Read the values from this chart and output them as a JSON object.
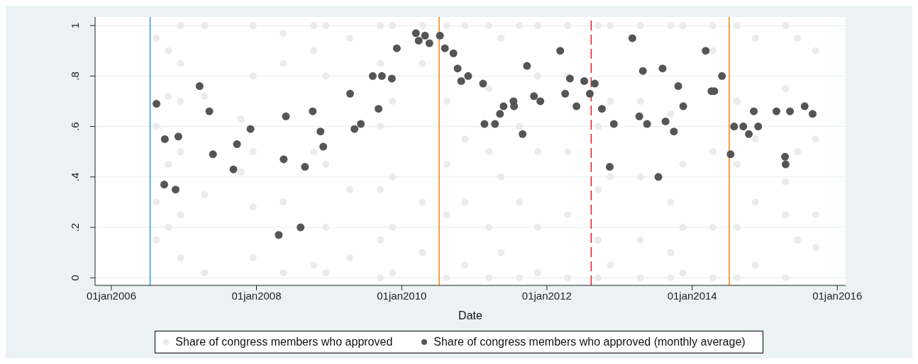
{
  "chart_data": {
    "type": "scatter",
    "xlabel": "Date",
    "marker": "circle",
    "grid": "y",
    "legend": "bottom",
    "xlim": [
      "2005-10-11",
      "2016-02-12"
    ],
    "ylim": [
      -0.03,
      1.034
    ],
    "xticks": [
      {
        "value": "2006-01-01",
        "label": "01jan2006"
      },
      {
        "value": "2008-01-01",
        "label": "01jan2008"
      },
      {
        "value": "2010-01-01",
        "label": "01jan2010"
      },
      {
        "value": "2012-01-01",
        "label": "01jan2012"
      },
      {
        "value": "2014-01-01",
        "label": "01jan2014"
      },
      {
        "value": "2016-01-01",
        "label": "01jan2016"
      }
    ],
    "yticks": [
      0,
      {
        "value": 0.2,
        "label": ".2"
      },
      {
        "value": 0.4,
        "label": ".4"
      },
      {
        "value": 0.6,
        "label": ".6"
      },
      {
        "value": 0.8,
        "label": ".8"
      },
      1
    ],
    "ref_lines": [
      {
        "axis": "x",
        "value": "2006-07-15",
        "color": "#3d9be9",
        "line_style": "solid"
      },
      {
        "axis": "x",
        "value": "2010-07-08",
        "color": "#f08a24",
        "line_style": "solid"
      },
      {
        "axis": "x",
        "value": "2012-08-11",
        "color": "#e8242c",
        "line_style": "dashed"
      },
      {
        "axis": "x",
        "value": "2014-07-06",
        "color": "#f08a24",
        "line_style": "solid"
      }
    ],
    "series": [
      {
        "name": "Share of congress members who approved",
        "color": "#ebebeb",
        "x": [
          "2006-08-15",
          "2006-08-15",
          "2006-08-15",
          "2006-08-15",
          "2006-10-15",
          "2006-10-15",
          "2006-10-15",
          "2006-10-15",
          "2006-12-15",
          "2006-12-15",
          "2006-12-15",
          "2006-12-15",
          "2006-12-15",
          "2006-12-15",
          "2007-04-15",
          "2007-04-15",
          "2007-04-15",
          "2007-04-15",
          "2007-10-15",
          "2007-10-15",
          "2007-12-15",
          "2007-12-15",
          "2007-12-15",
          "2007-12-15",
          "2007-12-15",
          "2008-05-15",
          "2008-05-15",
          "2008-05-15",
          "2008-05-15",
          "2008-10-15",
          "2008-10-15",
          "2008-10-15",
          "2008-10-15",
          "2008-12-15",
          "2008-12-15",
          "2008-12-15",
          "2008-12-15",
          "2008-12-15",
          "2009-04-15",
          "2009-04-15",
          "2009-04-15",
          "2009-09-15",
          "2009-09-15",
          "2009-09-15",
          "2009-09-15",
          "2009-09-15",
          "2009-09-15",
          "2009-11-15",
          "2009-11-15",
          "2009-11-15",
          "2009-11-15",
          "2009-11-15",
          "2010-04-15",
          "2010-04-15",
          "2010-04-15",
          "2010-04-15",
          "2010-08-15",
          "2010-08-15",
          "2010-08-15",
          "2010-08-15",
          "2010-08-15",
          "2010-11-15",
          "2010-11-15",
          "2010-11-15",
          "2010-11-15",
          "2011-03-15",
          "2011-03-15",
          "2011-03-15",
          "2011-03-15",
          "2011-03-15",
          "2011-05-15",
          "2011-05-15",
          "2011-05-15",
          "2011-08-15",
          "2011-08-15",
          "2011-08-15",
          "2011-08-15",
          "2011-11-15",
          "2011-11-15",
          "2011-11-15",
          "2011-11-15",
          "2011-11-15",
          "2012-04-15",
          "2012-04-15",
          "2012-04-15",
          "2012-04-15",
          "2012-04-15",
          "2012-09-15",
          "2012-09-15",
          "2012-09-15",
          "2012-09-15",
          "2012-09-15",
          "2012-11-15",
          "2012-11-15",
          "2012-11-15",
          "2012-11-15",
          "2013-04-15",
          "2013-04-15",
          "2013-04-15",
          "2013-04-15",
          "2013-04-15",
          "2013-09-15",
          "2013-09-15",
          "2013-09-15",
          "2013-09-15",
          "2013-09-15",
          "2013-11-15",
          "2013-11-15",
          "2013-11-15",
          "2013-11-15",
          "2014-04-15",
          "2014-04-15",
          "2014-04-15",
          "2014-04-15",
          "2014-04-15",
          "2014-08-15",
          "2014-08-15",
          "2014-08-15",
          "2014-08-15",
          "2014-08-15",
          "2014-11-15",
          "2014-11-15",
          "2014-11-15",
          "2014-11-15",
          "2015-04-15",
          "2015-04-15",
          "2015-04-15",
          "2015-04-15",
          "2015-04-15",
          "2015-06-15",
          "2015-06-15",
          "2015-06-15",
          "2015-09-15",
          "2015-09-15",
          "2015-09-15",
          "2015-09-15"
        ],
        "values": [
          0.95,
          0.6,
          0.3,
          0.15,
          0.9,
          0.72,
          0.45,
          0.2,
          1,
          0.85,
          0.7,
          0.5,
          0.25,
          0.08,
          1,
          0.72,
          0.33,
          0.02,
          0.63,
          0.42,
          1,
          0.8,
          0.5,
          0.28,
          0.08,
          0.97,
          0.85,
          0.3,
          0.02,
          1,
          0.9,
          0.5,
          0.05,
          1,
          0.8,
          0.45,
          0.2,
          0.02,
          0.95,
          0.35,
          0.08,
          1,
          0.85,
          0.6,
          0.35,
          0.15,
          0,
          1,
          0.7,
          0.4,
          0.2,
          0.02,
          1,
          0.85,
          0.3,
          0.1,
          1,
          0.7,
          0.45,
          0.25,
          0,
          1,
          0.55,
          0.3,
          0.05,
          1,
          0.75,
          0.5,
          0.2,
          0,
          0.95,
          0.4,
          0.1,
          1,
          0.6,
          0.3,
          0,
          1,
          0.8,
          0.5,
          0.2,
          0.02,
          1,
          0.8,
          0.5,
          0.25,
          0,
          1,
          0.6,
          0.35,
          0.15,
          0,
          1,
          0.7,
          0.4,
          0.05,
          1,
          0.7,
          0.4,
          0.15,
          0,
          1,
          0.65,
          0.3,
          0.1,
          0,
          1,
          0.45,
          0.2,
          0.02,
          1,
          0.9,
          0.5,
          0.2,
          0,
          1,
          0.7,
          0.45,
          0.2,
          0,
          0.95,
          0.55,
          0.3,
          0.05,
          1,
          0.75,
          0.38,
          0.25,
          0,
          0.95,
          0.5,
          0.15,
          0.9,
          0.55,
          0.25,
          0.12
        ]
      },
      {
        "name": "Share of congress members who approved (monthly average)",
        "color": "#555555",
        "x": [
          "2006-08-16",
          "2006-09-24",
          "2006-09-27",
          "2006-11-20",
          "2006-12-04",
          "2007-03-21",
          "2007-05-09",
          "2007-05-27",
          "2007-09-07",
          "2007-09-25",
          "2007-12-02",
          "2008-04-22",
          "2008-05-17",
          "2008-05-28",
          "2008-08-10",
          "2008-09-01",
          "2008-10-10",
          "2008-11-18",
          "2008-12-02",
          "2009-04-16",
          "2009-05-08",
          "2009-06-09",
          "2009-08-08",
          "2009-09-06",
          "2009-09-23",
          "2009-11-12",
          "2009-12-07",
          "2010-03-13",
          "2010-03-27",
          "2010-04-28",
          "2010-05-20",
          "2010-07-12",
          "2010-08-06",
          "2010-09-18",
          "2010-10-09",
          "2010-10-27",
          "2010-12-01",
          "2011-02-14",
          "2011-02-21",
          "2011-04-15",
          "2011-05-10",
          "2011-05-28",
          "2011-07-17",
          "2011-07-20",
          "2011-09-01",
          "2011-09-23",
          "2011-10-28",
          "2011-11-29",
          "2012-03-08",
          "2012-04-02",
          "2012-04-26",
          "2012-05-29",
          "2012-07-07",
          "2012-08-04",
          "2012-08-29",
          "2012-10-04",
          "2012-11-12",
          "2012-12-03",
          "2013-03-06",
          "2013-04-10",
          "2013-04-28",
          "2013-05-19",
          "2013-07-15",
          "2013-08-05",
          "2013-08-20",
          "2013-10-01",
          "2013-10-23",
          "2013-11-17",
          "2014-03-10",
          "2014-04-08",
          "2014-04-22",
          "2014-05-31",
          "2014-07-13",
          "2014-07-31",
          "2014-09-15",
          "2014-10-13",
          "2014-11-07",
          "2014-11-29",
          "2015-03-01",
          "2015-04-13",
          "2015-04-16",
          "2015-05-08",
          "2015-07-21",
          "2015-08-30"
        ],
        "values": [
          0.69,
          0.37,
          0.55,
          0.35,
          0.56,
          0.76,
          0.66,
          0.49,
          0.43,
          0.53,
          0.59,
          0.17,
          0.47,
          0.64,
          0.2,
          0.44,
          0.66,
          0.58,
          0.52,
          0.73,
          0.59,
          0.61,
          0.8,
          0.67,
          0.8,
          0.79,
          0.91,
          0.97,
          0.94,
          0.96,
          0.93,
          0.96,
          0.91,
          0.89,
          0.83,
          0.78,
          0.8,
          0.77,
          0.61,
          0.61,
          0.65,
          0.68,
          0.7,
          0.68,
          0.57,
          0.84,
          0.72,
          0.7,
          0.9,
          0.73,
          0.79,
          0.68,
          0.78,
          0.73,
          0.77,
          0.67,
          0.44,
          0.61,
          0.95,
          0.64,
          0.82,
          0.61,
          0.4,
          0.83,
          0.62,
          0.58,
          0.76,
          0.68,
          0.9,
          0.74,
          0.74,
          0.8,
          0.49,
          0.6,
          0.6,
          0.57,
          0.66,
          0.6,
          0.66,
          0.48,
          0.45,
          0.66,
          0.68,
          0.65
        ]
      }
    ]
  }
}
